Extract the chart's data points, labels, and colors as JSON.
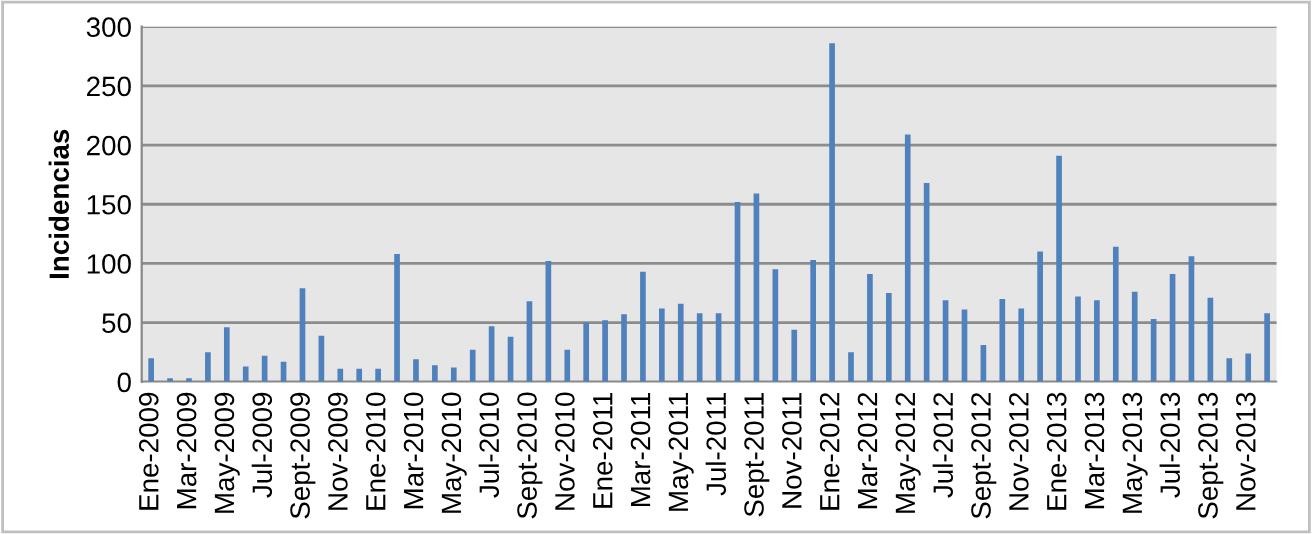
{
  "chart_data": {
    "type": "bar",
    "ylabel": "Incidencias",
    "categories": [
      "Ene-2009",
      null,
      "Mar-2009",
      null,
      "May-2009",
      null,
      "Jul-2009",
      null,
      "Sept-2009",
      null,
      "Nov-2009",
      null,
      "Ene-2010",
      null,
      "Mar-2010",
      null,
      "May-2010",
      null,
      "Jul-2010",
      null,
      "Sept-2010",
      null,
      "Nov-2010",
      null,
      "Ene-2011",
      null,
      "Mar-2011",
      null,
      "May-2011",
      null,
      "Jul-2011",
      null,
      "Sept-2011",
      null,
      "Nov-2011",
      null,
      "Ene-2012",
      null,
      "Mar-2012",
      null,
      "May-2012",
      null,
      "Jul-2012",
      null,
      "Sept-2012",
      null,
      "Nov-2012",
      null,
      "Ene-2013",
      null,
      "Mar-2013",
      null,
      "May-2013",
      null,
      "Jul-2013",
      null,
      "Sept-2013",
      null,
      "Nov-2013",
      null
    ],
    "values": [
      20,
      3,
      3,
      25,
      46,
      13,
      22,
      17,
      79,
      39,
      11,
      11,
      11,
      108,
      19,
      14,
      12,
      27,
      47,
      38,
      68,
      102,
      27,
      50,
      52,
      57,
      93,
      62,
      66,
      58,
      58,
      152,
      159,
      95,
      44,
      103,
      286,
      25,
      91,
      75,
      209,
      168,
      69,
      61,
      31,
      70,
      62,
      110,
      191,
      72,
      69,
      114,
      76,
      53,
      91,
      106,
      71,
      20,
      24,
      58
    ],
    "color": "#4f81bd",
    "ylim": [
      0,
      300
    ],
    "yticks": [
      0,
      50,
      100,
      150,
      200,
      250,
      300
    ],
    "grid": "y",
    "legend": false
  }
}
